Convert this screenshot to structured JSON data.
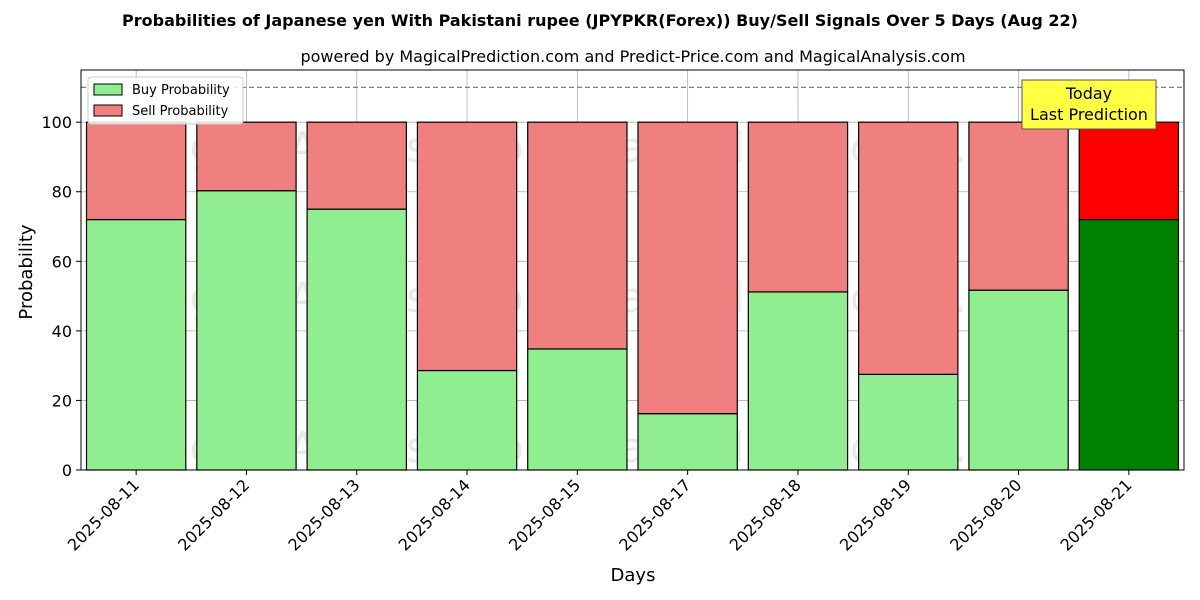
{
  "chart_data": {
    "type": "bar",
    "stacked": true,
    "title": "Probabilities of Japanese yen With Pakistani rupee (JPYPKR(Forex)) Buy/Sell Signals Over 5 Days (Aug 22)",
    "subtitle": "powered by MagicalPrediction.com and Predict-Price.com and MagicalAnalysis.com",
    "xlabel": "Days",
    "ylabel": "Probability",
    "ylim": [
      0,
      115
    ],
    "yticks": [
      0,
      20,
      40,
      60,
      80,
      100
    ],
    "grid": true,
    "legend_position": "top-left",
    "reference_line": 110,
    "categories": [
      "2025-08-11",
      "2025-08-12",
      "2025-08-13",
      "2025-08-14",
      "2025-08-15",
      "2025-08-17",
      "2025-08-18",
      "2025-08-19",
      "2025-08-20",
      "2025-08-21"
    ],
    "series": [
      {
        "name": "Buy Probability",
        "values": [
          72,
          80.3,
          75,
          28.6,
          34.8,
          16.2,
          51.2,
          27.5,
          51.7,
          72
        ],
        "color": "#90ee90",
        "highlight_color": "#008000"
      },
      {
        "name": "Sell Probability",
        "values": [
          28,
          19.7,
          25,
          71.4,
          65.2,
          83.8,
          48.8,
          72.5,
          48.3,
          28
        ],
        "color": "#f08080",
        "highlight_color": "#ff0000"
      }
    ],
    "highlight_index": 9,
    "annotation": {
      "lines": [
        "Today",
        "Last Prediction"
      ],
      "background": "#ffff44"
    },
    "watermarks": [
      "MagicalAnalysis.com",
      "MagicalPrediction.com"
    ]
  }
}
